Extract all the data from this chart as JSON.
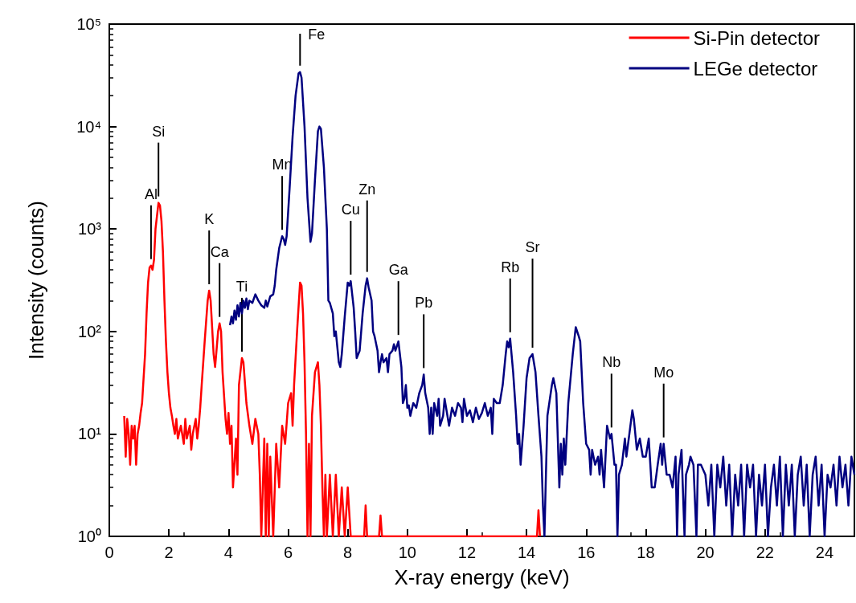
{
  "chart_data": {
    "type": "line",
    "xlabel": "X-ray energy (keV)",
    "ylabel": "Intensity (counts)",
    "log": "y",
    "xlim": [
      0,
      25
    ],
    "xticks": [
      0,
      2,
      4,
      6,
      8,
      10,
      12,
      14,
      16,
      18,
      20,
      22,
      24
    ],
    "ylim": [
      1,
      100000
    ],
    "yticks": [
      {
        "value": 1,
        "label": "10⁰"
      },
      {
        "value": 10,
        "label": "10¹"
      },
      {
        "value": 100,
        "label": "10²"
      },
      {
        "value": 1000,
        "label": "10³"
      },
      {
        "value": 10000,
        "label": "10⁴"
      },
      {
        "value": 100000,
        "label": "10⁵"
      }
    ],
    "grid": false,
    "legend": "top right",
    "marker": "none",
    "line_style": "solid",
    "series": [
      {
        "name": "Si-Pin detector",
        "color": "#ff0000",
        "x": [
          0.5,
          0.55,
          0.6,
          0.65,
          0.7,
          0.75,
          0.8,
          0.85,
          0.9,
          0.95,
          1.0,
          1.05,
          1.1,
          1.15,
          1.2,
          1.25,
          1.3,
          1.35,
          1.4,
          1.45,
          1.5,
          1.55,
          1.65,
          1.7,
          1.75,
          1.8,
          1.85,
          1.9,
          1.95,
          2.0,
          2.05,
          2.1,
          2.15,
          2.2,
          2.25,
          2.3,
          2.4,
          2.5,
          2.55,
          2.6,
          2.7,
          2.75,
          2.8,
          2.9,
          2.95,
          3.0,
          3.05,
          3.1,
          3.2,
          3.3,
          3.35,
          3.4,
          3.5,
          3.55,
          3.65,
          3.7,
          3.75,
          3.8,
          3.9,
          3.95,
          4.0,
          4.05,
          4.1,
          4.15,
          4.25,
          4.3,
          4.35,
          4.45,
          4.5,
          4.6,
          4.7,
          4.8,
          4.9,
          5.0,
          5.05,
          5.1,
          5.2,
          5.25,
          5.3,
          5.35,
          5.4,
          5.5,
          5.6,
          5.7,
          5.8,
          5.9,
          6.0,
          6.1,
          6.15,
          6.2,
          6.3,
          6.4,
          6.45,
          6.5,
          6.55,
          6.6,
          6.65,
          6.7,
          6.75,
          6.8,
          6.9,
          7.0,
          7.05,
          7.1,
          7.15,
          7.2,
          7.25,
          7.3,
          7.4,
          7.5,
          7.6,
          7.7,
          7.8,
          7.9,
          8.0,
          8.1,
          8.55,
          8.6,
          8.65,
          9.05,
          9.1,
          9.15,
          14.35,
          14.4,
          14.45
        ],
        "values": [
          15,
          6,
          14,
          10,
          5,
          12,
          9,
          12,
          5,
          10,
          12,
          16,
          20,
          35,
          60,
          150,
          300,
          420,
          440,
          400,
          500,
          1000,
          1800,
          1700,
          1200,
          600,
          200,
          80,
          40,
          25,
          18,
          15,
          12,
          10,
          14,
          9,
          12,
          8,
          14,
          9,
          12,
          7,
          10,
          14,
          9,
          12,
          18,
          30,
          80,
          200,
          250,
          200,
          60,
          45,
          100,
          120,
          100,
          40,
          14,
          10,
          16,
          8,
          12,
          3,
          9,
          4,
          30,
          55,
          50,
          20,
          12,
          8,
          14,
          10,
          4,
          1,
          9,
          1,
          8,
          1,
          6,
          1,
          8,
          3,
          12,
          8,
          20,
          25,
          12,
          30,
          100,
          300,
          280,
          150,
          50,
          10,
          1,
          8,
          1,
          15,
          40,
          50,
          30,
          12,
          3,
          1,
          4,
          1,
          4,
          1,
          4,
          1,
          3,
          1,
          3,
          1,
          1,
          2,
          1,
          1,
          1.6,
          1,
          1,
          1.8,
          1
        ]
      },
      {
        "name": "LEGe detector",
        "color": "#000080",
        "x": [
          4.05,
          4.1,
          4.15,
          4.2,
          4.25,
          4.3,
          4.35,
          4.4,
          4.45,
          4.5,
          4.55,
          4.6,
          4.65,
          4.7,
          4.8,
          4.9,
          5.0,
          5.1,
          5.2,
          5.25,
          5.3,
          5.4,
          5.5,
          5.55,
          5.6,
          5.7,
          5.8,
          5.85,
          5.9,
          5.95,
          6.05,
          6.15,
          6.25,
          6.35,
          6.4,
          6.45,
          6.55,
          6.65,
          6.75,
          6.8,
          6.9,
          7.0,
          7.05,
          7.1,
          7.2,
          7.3,
          7.35,
          7.4,
          7.5,
          7.55,
          7.6,
          7.7,
          7.75,
          7.8,
          7.9,
          8.0,
          8.05,
          8.1,
          8.2,
          8.25,
          8.3,
          8.4,
          8.5,
          8.6,
          8.65,
          8.7,
          8.8,
          8.85,
          8.9,
          9.0,
          9.05,
          9.1,
          9.15,
          9.2,
          9.3,
          9.35,
          9.4,
          9.5,
          9.55,
          9.6,
          9.7,
          9.8,
          9.85,
          9.9,
          9.95,
          10.0,
          10.05,
          10.1,
          10.2,
          10.3,
          10.4,
          10.5,
          10.55,
          10.6,
          10.7,
          10.75,
          10.8,
          10.85,
          10.9,
          11.0,
          11.05,
          11.1,
          11.2,
          11.25,
          11.3,
          11.4,
          11.5,
          11.6,
          11.7,
          11.8,
          11.85,
          11.9,
          12.0,
          12.1,
          12.2,
          12.3,
          12.4,
          12.5,
          12.6,
          12.7,
          12.8,
          12.85,
          12.9,
          13.0,
          13.1,
          13.2,
          13.3,
          13.35,
          13.4,
          13.45,
          13.55,
          13.65,
          13.7,
          13.75,
          13.8,
          13.9,
          14.0,
          14.1,
          14.2,
          14.3,
          14.4,
          14.5,
          14.55,
          14.6,
          14.65,
          14.7,
          14.85,
          14.9,
          15.0,
          15.1,
          15.15,
          15.2,
          15.25,
          15.3,
          15.4,
          15.55,
          15.65,
          15.75,
          15.8,
          15.9,
          16.0,
          16.1,
          16.15,
          16.2,
          16.3,
          16.4,
          16.45,
          16.5,
          16.6,
          16.7,
          16.8,
          16.85,
          16.95,
          17.0,
          17.05,
          17.1,
          17.2,
          17.3,
          17.35,
          17.45,
          17.55,
          17.6,
          17.7,
          17.8,
          17.9,
          18.0,
          18.1,
          18.2,
          18.3,
          18.4,
          18.5,
          18.55,
          18.6,
          18.7,
          18.8,
          18.9,
          19.0,
          19.05,
          19.1,
          19.2,
          19.3,
          19.35,
          19.45,
          19.5,
          19.6,
          19.7,
          19.75,
          19.85,
          20.0,
          20.1,
          20.2,
          20.3,
          20.4,
          20.5,
          20.6,
          20.7,
          20.8,
          20.9,
          21.0,
          21.1,
          21.2,
          21.3,
          21.4,
          21.5,
          21.6,
          21.7,
          21.8,
          21.9,
          22.0,
          22.1,
          22.2,
          22.3,
          22.4,
          22.5,
          22.6,
          22.7,
          22.8,
          22.9,
          23.0,
          23.1,
          23.2,
          23.3,
          23.4,
          23.5,
          23.6,
          23.7,
          23.8,
          23.9,
          24.0,
          24.1,
          24.2,
          24.3,
          24.4,
          24.5,
          24.6,
          24.7,
          24.8,
          24.9,
          25.0
        ],
        "values": [
          115,
          140,
          120,
          160,
          130,
          180,
          140,
          190,
          150,
          200,
          170,
          210,
          165,
          200,
          190,
          230,
          200,
          180,
          170,
          200,
          175,
          220,
          230,
          280,
          400,
          650,
          850,
          800,
          700,
          850,
          2500,
          8000,
          20000,
          33000,
          34000,
          30000,
          10000,
          2000,
          750,
          900,
          3000,
          9000,
          10000,
          9500,
          4000,
          1000,
          200,
          190,
          150,
          90,
          100,
          50,
          45,
          60,
          140,
          300,
          280,
          310,
          170,
          100,
          55,
          65,
          150,
          280,
          330,
          270,
          200,
          100,
          90,
          65,
          40,
          50,
          60,
          50,
          55,
          40,
          60,
          65,
          75,
          65,
          80,
          45,
          20,
          22,
          30,
          18,
          19,
          15,
          20,
          18,
          25,
          30,
          38,
          25,
          18,
          10,
          18,
          10,
          20,
          15,
          22,
          12,
          15,
          22,
          18,
          12,
          18,
          15,
          20,
          18,
          13,
          22,
          15,
          17,
          13,
          18,
          14,
          16,
          20,
          15,
          18,
          10,
          22,
          20,
          20,
          30,
          60,
          80,
          70,
          85,
          40,
          15,
          8,
          10,
          5,
          12,
          35,
          55,
          60,
          40,
          15,
          6,
          2,
          1,
          4,
          15,
          30,
          35,
          25,
          3,
          8,
          4,
          9,
          5,
          20,
          60,
          110,
          90,
          80,
          20,
          8,
          7,
          4,
          7,
          5,
          6,
          4,
          7,
          3,
          12,
          9,
          10,
          5,
          5,
          1,
          4,
          5,
          9,
          6,
          10,
          17,
          14,
          7,
          9,
          6,
          6,
          9,
          3,
          3,
          5,
          8,
          5,
          8,
          4,
          4,
          3,
          6,
          1,
          4,
          7,
          1,
          4,
          5,
          6,
          5,
          1,
          5,
          5,
          4,
          2,
          5,
          1,
          5,
          3,
          6,
          2,
          5,
          1,
          4,
          2,
          5,
          1,
          5,
          3,
          5,
          1,
          4,
          2,
          5,
          1,
          3,
          5,
          2,
          6,
          1,
          5,
          2,
          5,
          1,
          4,
          6,
          2,
          5,
          1,
          4,
          6,
          2,
          5,
          1,
          4,
          3,
          5,
          2,
          6,
          3,
          5,
          2,
          6,
          4
        ]
      }
    ],
    "annotations": [
      {
        "text": "Al",
        "x": 1.4,
        "y": 440
      },
      {
        "text": "Si",
        "x": 1.65,
        "y": 1800
      },
      {
        "text": "K",
        "x": 3.35,
        "y": 250
      },
      {
        "text": "Ca",
        "x": 3.7,
        "y": 120
      },
      {
        "text": "Ti",
        "x": 4.45,
        "y": 55
      },
      {
        "text": "Mn",
        "x": 5.8,
        "y": 850
      },
      {
        "text": "Fe",
        "x": 6.4,
        "y": 34000
      },
      {
        "text": "Cu",
        "x": 8.1,
        "y": 310
      },
      {
        "text": "Zn",
        "x": 8.65,
        "y": 330
      },
      {
        "text": "Ga",
        "x": 9.7,
        "y": 80
      },
      {
        "text": "Pb",
        "x": 10.55,
        "y": 38
      },
      {
        "text": "Rb",
        "x": 13.45,
        "y": 85
      },
      {
        "text": "Sr",
        "x": 14.2,
        "y": 60
      },
      {
        "text": "Nb",
        "x": 16.85,
        "y": 10
      },
      {
        "text": "Mo",
        "x": 18.6,
        "y": 8
      }
    ]
  }
}
